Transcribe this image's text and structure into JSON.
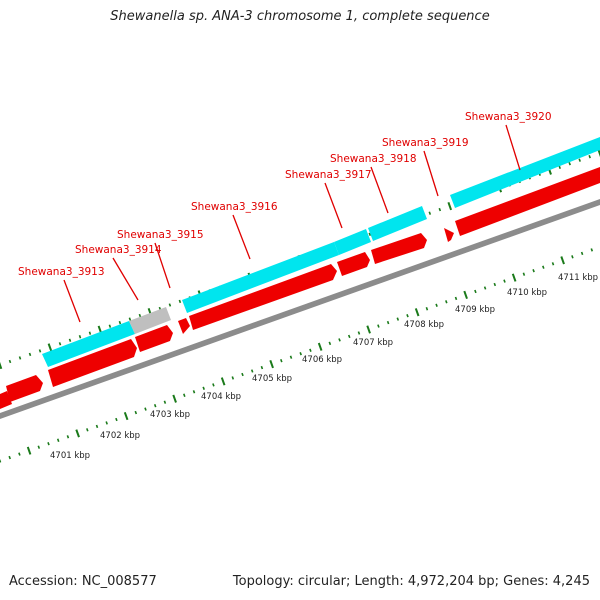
{
  "title": "Shewanella sp. ANA-3 chromosome 1, complete sequence",
  "footer": {
    "accession": "Accession: NC_008577",
    "summary": "Topology: circular; Length: 4,972,204 bp; Genes: 4,245"
  },
  "colors": {
    "cds_forward": "#00e5ee",
    "cds_reverse": "#ee0000",
    "pseudo": "#bfbfbf",
    "backbone": "#8c8c8c",
    "ticks": "#1a7a1a",
    "gene_label": "#e00000"
  },
  "gene_labels": [
    "Shewana3_3913",
    "Shewana3_3914",
    "Shewana3_3915",
    "Shewana3_3916",
    "Shewana3_3917",
    "Shewana3_3918",
    "Shewana3_3919",
    "Shewana3_3920"
  ],
  "kbp_labels": [
    "4701 kbp",
    "4702 kbp",
    "4703 kbp",
    "4704 kbp",
    "4705 kbp",
    "4706 kbp",
    "4707 kbp",
    "4708 kbp",
    "4709 kbp",
    "4710 kbp",
    "4711 kbp"
  ]
}
